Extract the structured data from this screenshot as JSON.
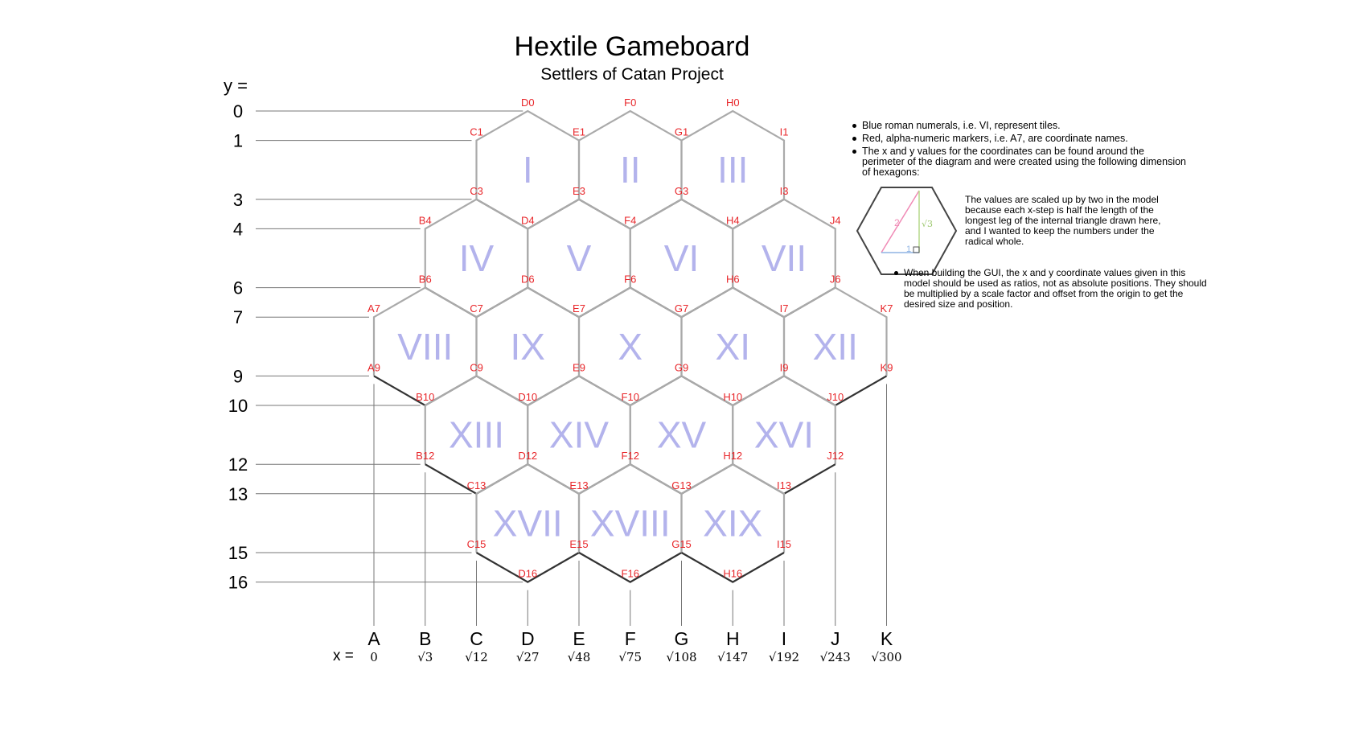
{
  "title": "Hextile  Gameboard",
  "subtitle": "Settlers of Catan Project",
  "y_axis": {
    "label": "y =",
    "ticks": [
      {
        "y": 0,
        "label": "0"
      },
      {
        "y": 1,
        "label": "1"
      },
      {
        "y": 3,
        "label": "3"
      },
      {
        "y": 4,
        "label": "4"
      },
      {
        "y": 6,
        "label": "6"
      },
      {
        "y": 7,
        "label": "7"
      },
      {
        "y": 9,
        "label": "9"
      },
      {
        "y": 10,
        "label": "10"
      },
      {
        "y": 12,
        "label": "12"
      },
      {
        "y": 13,
        "label": "13"
      },
      {
        "y": 15,
        "label": "15"
      },
      {
        "y": 16,
        "label": "16"
      }
    ]
  },
  "x_axis": {
    "label": "x =",
    "columns": [
      {
        "letter": "A",
        "value": "0"
      },
      {
        "letter": "B",
        "value": "√3"
      },
      {
        "letter": "C",
        "value": "√12"
      },
      {
        "letter": "D",
        "value": "√27"
      },
      {
        "letter": "E",
        "value": "√48"
      },
      {
        "letter": "F",
        "value": "√75"
      },
      {
        "letter": "G",
        "value": "√108"
      },
      {
        "letter": "H",
        "value": "√147"
      },
      {
        "letter": "I",
        "value": "√192"
      },
      {
        "letter": "J",
        "value": "√243"
      },
      {
        "letter": "K",
        "value": "√300"
      }
    ]
  },
  "tiles": [
    {
      "label": "I",
      "col": 3,
      "row": 2
    },
    {
      "label": "II",
      "col": 5,
      "row": 2
    },
    {
      "label": "III",
      "col": 7,
      "row": 2
    },
    {
      "label": "IV",
      "col": 2,
      "row": 5
    },
    {
      "label": "V",
      "col": 4,
      "row": 5
    },
    {
      "label": "VI",
      "col": 6,
      "row": 5
    },
    {
      "label": "VII",
      "col": 8,
      "row": 5
    },
    {
      "label": "VIII",
      "col": 1,
      "row": 8
    },
    {
      "label": "IX",
      "col": 3,
      "row": 8
    },
    {
      "label": "X",
      "col": 5,
      "row": 8
    },
    {
      "label": "XI",
      "col": 7,
      "row": 8
    },
    {
      "label": "XII",
      "col": 9,
      "row": 8
    },
    {
      "label": "XIII",
      "col": 2,
      "row": 11
    },
    {
      "label": "XIV",
      "col": 4,
      "row": 11
    },
    {
      "label": "XV",
      "col": 6,
      "row": 11
    },
    {
      "label": "XVI",
      "col": 8,
      "row": 11
    },
    {
      "label": "XVII",
      "col": 3,
      "row": 14
    },
    {
      "label": "XVIII",
      "col": 5,
      "row": 14
    },
    {
      "label": "XIX",
      "col": 7,
      "row": 14
    }
  ],
  "coordinates": [
    "D0",
    "F0",
    "H0",
    "C1",
    "E1",
    "G1",
    "I1",
    "C3",
    "E3",
    "G3",
    "I3",
    "B4",
    "D4",
    "F4",
    "H4",
    "J4",
    "B6",
    "D6",
    "F6",
    "H6",
    "J6",
    "A7",
    "C7",
    "E7",
    "G7",
    "I7",
    "K7",
    "A9",
    "C9",
    "E9",
    "G9",
    "I9",
    "K9",
    "B10",
    "D10",
    "F10",
    "H10",
    "J10",
    "B12",
    "D12",
    "F12",
    "H12",
    "J12",
    "C13",
    "E13",
    "G13",
    "I13",
    "C15",
    "E15",
    "G15",
    "I15",
    "D16",
    "F16",
    "H16"
  ],
  "notes": {
    "bullet1": "Blue roman numerals, i.e. VI, represent tiles.",
    "bullet2": "Red, alpha-numeric markers, i.e. A7, are coordinate names.",
    "bullet3": "The x and y values for the coordinates can be found around the perimeter of the diagram and were created using the following dimension of hexagons:",
    "scale_note": "The values are scaled up by two in the model because each x-step is half the length of the longest leg of the internal triangle drawn here, and I wanted to keep the numbers under the radical whole.",
    "gui_note": "When building the GUI, the x and y  coordinate values given in this model should be used as ratios, not as absolute positions. They should be multiplied by a scale factor and offset from the origin to get the desired size and position."
  },
  "example_hex": {
    "hypotenuse": "2",
    "long_leg": "√3",
    "short_leg": "1"
  },
  "colors": {
    "tile_numeral": "#b3b3ec",
    "coordinate_label": "#e8262a",
    "hex_stroke_light": "#aaaaaa",
    "hex_stroke_dark": "#333333"
  }
}
